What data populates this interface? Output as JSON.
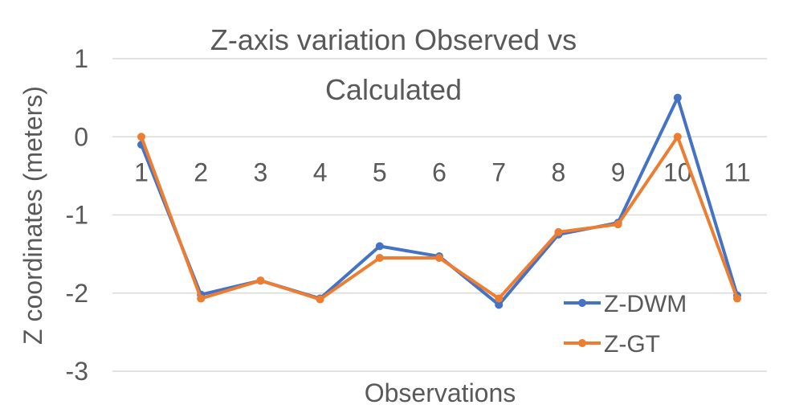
{
  "chart_data": {
    "type": "line",
    "title_lines": [
      "Z-axis variation Observed vs",
      "Calculated"
    ],
    "xlabel": "Observations",
    "ylabel": "Z coordinates (meters)",
    "categories": [
      "1",
      "2",
      "3",
      "4",
      "5",
      "6",
      "7",
      "8",
      "9",
      "10",
      "11"
    ],
    "yticks": [
      "1",
      "0",
      "-1",
      "-2",
      "-3"
    ],
    "ylim": [
      -3,
      1
    ],
    "grid": true,
    "legend_position": "bottom-right",
    "series": [
      {
        "name": "Z-DWM",
        "color": "#4472C4",
        "values": [
          -0.1,
          -2.02,
          -1.84,
          -2.07,
          -1.4,
          -1.53,
          -2.15,
          -1.25,
          -1.1,
          0.5,
          -2.03
        ]
      },
      {
        "name": "Z-GT",
        "color": "#ED7D31",
        "values": [
          0.0,
          -2.07,
          -1.84,
          -2.08,
          -1.55,
          -1.55,
          -2.07,
          -1.22,
          -1.12,
          0.0,
          -2.07
        ]
      }
    ]
  }
}
